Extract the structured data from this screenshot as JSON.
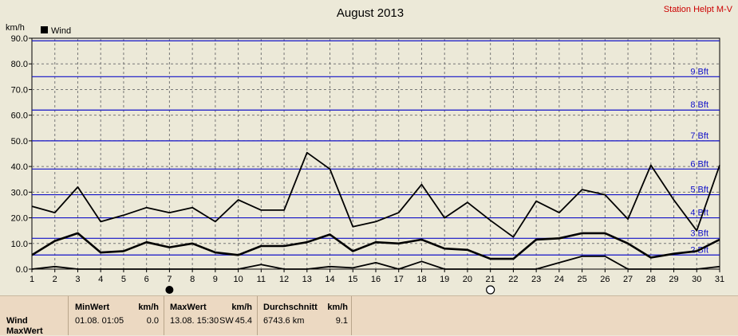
{
  "station": "Station Helpt M-V",
  "chart_data": {
    "type": "line",
    "title": "August 2013",
    "ylabel": "km/h",
    "ylim": [
      0,
      90
    ],
    "yticks": [
      "0.0",
      "10.0",
      "20.0",
      "30.0",
      "40.0",
      "50.0",
      "60.0",
      "70.0",
      "80.0",
      "90.0"
    ],
    "x": [
      1,
      2,
      3,
      4,
      5,
      6,
      7,
      8,
      9,
      10,
      11,
      12,
      13,
      14,
      15,
      16,
      17,
      18,
      19,
      20,
      21,
      22,
      23,
      24,
      25,
      26,
      27,
      28,
      29,
      30,
      31
    ],
    "legend": "Wind",
    "beaufort_lines": [
      {
        "label": "2 Bft",
        "value": 5.5
      },
      {
        "label": "3 Bft",
        "value": 12
      },
      {
        "label": "4 Bft",
        "value": 20
      },
      {
        "label": "5 Bft",
        "value": 29
      },
      {
        "label": "6 Bft",
        "value": 39
      },
      {
        "label": "7 Bft",
        "value": 50
      },
      {
        "label": "8 Bft",
        "value": 62
      },
      {
        "label": "9 Bft",
        "value": 75
      },
      {
        "label": "",
        "value": 89
      }
    ],
    "series": [
      {
        "name": "max",
        "values": [
          24.5,
          22,
          32,
          18.5,
          21,
          24,
          22,
          24,
          18.5,
          27,
          23,
          23,
          45.4,
          39,
          16.5,
          18.5,
          22,
          33,
          20,
          26,
          19,
          12.5,
          26.5,
          22,
          31,
          29,
          19.5,
          40.5,
          27,
          15,
          40.5
        ]
      },
      {
        "name": "avg",
        "values": [
          5.5,
          11,
          14,
          6.5,
          7,
          10.5,
          8.5,
          10,
          6.5,
          5.5,
          9,
          9,
          10.5,
          13.5,
          7,
          10.5,
          10,
          11.5,
          8,
          7.5,
          4,
          4,
          11.5,
          12,
          14,
          14,
          10,
          4.5,
          6,
          7,
          11.5
        ]
      },
      {
        "name": "min",
        "values": [
          0,
          1,
          0,
          0,
          0,
          0,
          0,
          0,
          0,
          0,
          1.8,
          0,
          0,
          1,
          0.5,
          2.5,
          0,
          3,
          0,
          0,
          0,
          0,
          0,
          2.5,
          5,
          5,
          0,
          0,
          0,
          0,
          1
        ]
      }
    ],
    "markers": [
      {
        "day": 7,
        "type": "filled"
      },
      {
        "day": 21,
        "type": "open"
      }
    ]
  },
  "footer": {
    "row1_label": "Wind",
    "row2_label": "MaxWert",
    "min": {
      "header": "MinWert",
      "unit": "km/h",
      "date": "01.08.  01:05",
      "value": "0.0"
    },
    "max": {
      "header": "MaxWert",
      "unit": "km/h",
      "date": "13.08.  15:30",
      "dir": "SW",
      "value": "45.4"
    },
    "avg": {
      "header": "Durchschnitt",
      "unit": "km/h",
      "dist": "6743.6 km",
      "value": "9.1"
    }
  }
}
